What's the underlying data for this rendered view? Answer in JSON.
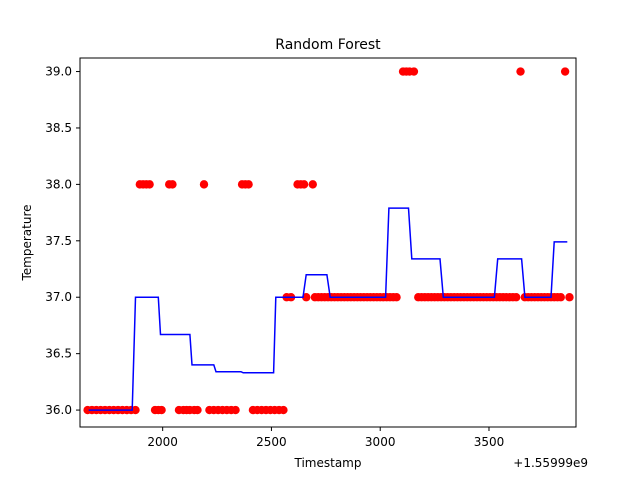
{
  "chart_data": {
    "type": "scatter",
    "title": "Random Forest",
    "xlabel": "Timestamp",
    "ylabel": "Temperature",
    "x_offset_label": "+1.55999e9",
    "xlim": [
      1620,
      3900
    ],
    "ylim": [
      35.85,
      39.12
    ],
    "x_ticks": [
      2000,
      2500,
      3000,
      3500
    ],
    "x_tick_labels": [
      "2000",
      "2500",
      "3000",
      "3500"
    ],
    "y_ticks": [
      36.0,
      36.5,
      37.0,
      37.5,
      38.0,
      38.5,
      39.0
    ],
    "y_tick_labels": [
      "36.0",
      "36.5",
      "37.0",
      "37.5",
      "38.0",
      "38.5",
      "39.0"
    ],
    "grid": false,
    "series": [
      {
        "kind": "scatter",
        "color": "#ff0000",
        "x": [
          1655,
          1675,
          1695,
          1715,
          1735,
          1755,
          1775,
          1795,
          1815,
          1835,
          1855,
          1875,
          1895,
          1910,
          1925,
          1940,
          1965,
          1980,
          1995,
          2030,
          2045,
          2075,
          2095,
          2110,
          2125,
          2145,
          2160,
          2190,
          2215,
          2235,
          2255,
          2275,
          2295,
          2315,
          2335,
          2365,
          2380,
          2395,
          2415,
          2435,
          2455,
          2475,
          2495,
          2515,
          2535,
          2555,
          2570,
          2590,
          2620,
          2635,
          2650,
          2660,
          2690,
          2700,
          2715,
          2730,
          2745,
          2760,
          2775,
          2790,
          2805,
          2820,
          2835,
          2850,
          2865,
          2880,
          2895,
          2910,
          2925,
          2940,
          2955,
          2970,
          2985,
          3000,
          3015,
          3030,
          3045,
          3060,
          3075,
          3105,
          3120,
          3135,
          3155,
          3175,
          3190,
          3205,
          3220,
          3235,
          3250,
          3265,
          3280,
          3295,
          3310,
          3325,
          3340,
          3355,
          3370,
          3385,
          3400,
          3415,
          3430,
          3445,
          3460,
          3475,
          3490,
          3505,
          3520,
          3535,
          3550,
          3565,
          3580,
          3595,
          3610,
          3625,
          3645,
          3665,
          3680,
          3695,
          3710,
          3725,
          3740,
          3755,
          3770,
          3785,
          3800,
          3815,
          3830,
          3850,
          3870
        ],
        "y": [
          36,
          36,
          36,
          36,
          36,
          36,
          36,
          36,
          36,
          36,
          36,
          36,
          38,
          38,
          38,
          38,
          36,
          36,
          36,
          38,
          38,
          36,
          36,
          36,
          36,
          36,
          36,
          38,
          36,
          36,
          36,
          36,
          36,
          36,
          36,
          38,
          38,
          38,
          36,
          36,
          36,
          36,
          36,
          36,
          36,
          36,
          37,
          37,
          38,
          38,
          38,
          37,
          38,
          37,
          37,
          37,
          37,
          37,
          37,
          37,
          37,
          37,
          37,
          37,
          37,
          37,
          37,
          37,
          37,
          37,
          37,
          37,
          37,
          37,
          37,
          37,
          37,
          37,
          37,
          39,
          39,
          39,
          39,
          37,
          37,
          37,
          37,
          37,
          37,
          37,
          37,
          37,
          37,
          37,
          37,
          37,
          37,
          37,
          37,
          37,
          37,
          37,
          37,
          37,
          37,
          37,
          37,
          37,
          37,
          37,
          37,
          37,
          37,
          37,
          39,
          37,
          37,
          37,
          37,
          37,
          37,
          37,
          37,
          37,
          37,
          37,
          37,
          39,
          37
        ]
      },
      {
        "kind": "line",
        "color": "#0000ff",
        "x": [
          1660,
          1860,
          1875,
          1980,
          1990,
          2125,
          2135,
          2235,
          2245,
          2360,
          2370,
          2510,
          2520,
          2645,
          2660,
          2755,
          2770,
          3025,
          3040,
          3130,
          3145,
          3275,
          3290,
          3525,
          3540,
          3650,
          3665,
          3785,
          3800,
          3860
        ],
        "y": [
          36.0,
          36.0,
          37.0,
          37.0,
          36.67,
          36.67,
          36.4,
          36.4,
          36.34,
          36.34,
          36.33,
          36.33,
          37.0,
          37.0,
          37.2,
          37.2,
          37.0,
          37.0,
          37.79,
          37.79,
          37.34,
          37.34,
          37.0,
          37.0,
          37.34,
          37.34,
          37.0,
          37.0,
          37.49,
          37.49
        ]
      }
    ]
  }
}
